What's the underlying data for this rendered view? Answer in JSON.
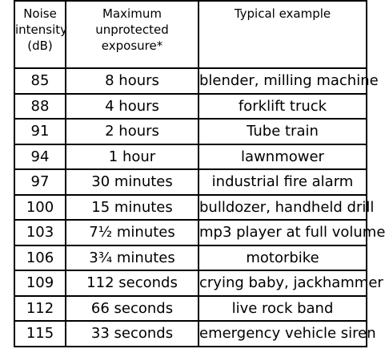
{
  "table": {
    "headers": [
      [
        "Noise",
        "intensity",
        "(dB)"
      ],
      [
        "Maximum",
        "unprotected",
        "exposure*"
      ],
      [
        "Typical example"
      ]
    ],
    "rows": [
      [
        "85",
        "8 hours",
        "blender, milling machine"
      ],
      [
        "88",
        "4 hours",
        "forklift truck"
      ],
      [
        "91",
        "2 hours",
        "Tube train"
      ],
      [
        "94",
        "1 hour",
        "lawnmower"
      ],
      [
        "97",
        "30 minutes",
        "industrial fire alarm"
      ],
      [
        "100",
        "15 minutes",
        "bulldozer, handheld drill"
      ],
      [
        "103",
        "7½ minutes",
        "mp3 player at full volume"
      ],
      [
        "106",
        "3¾ minutes",
        "motorbike"
      ],
      [
        "109",
        "112 seconds",
        "crying baby, jackhammer"
      ],
      [
        "112",
        "66 seconds",
        "live rock band"
      ],
      [
        "115",
        "33 seconds",
        "emergency vehicle siren"
      ]
    ]
  }
}
